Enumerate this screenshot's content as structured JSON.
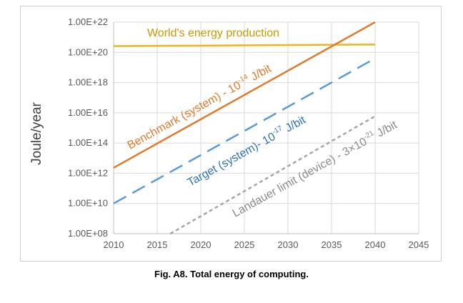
{
  "chart_data": {
    "type": "line",
    "title": "",
    "xlabel": "",
    "ylabel": "Joule/year",
    "yscale": "log",
    "xlim": [
      2010,
      2045
    ],
    "ylim": [
      100000000.0,
      1e+22
    ],
    "x_ticks": [
      "2010",
      "2015",
      "2020",
      "2025",
      "2030",
      "2035",
      "2040",
      "2045"
    ],
    "x_tick_values": [
      2010,
      2015,
      2020,
      2025,
      2030,
      2035,
      2040,
      2045
    ],
    "y_ticks": [
      "1.00E+08",
      "1.00E+10",
      "1.00E+12",
      "1.00E+14",
      "1.00E+16",
      "1.00E+18",
      "1.00E+20",
      "1.00E+22"
    ],
    "y_tick_values": [
      100000000.0,
      10000000000.0,
      1000000000000.0,
      100000000000000.0,
      1e+16,
      1e+18,
      1e+20,
      1e+22
    ],
    "grid": true,
    "series": [
      {
        "name": "World's energy production",
        "label_parts": [
          "World's energy production"
        ],
        "color": "#f2b21c",
        "style": "solid",
        "x": [
          2010,
          2040
        ],
        "y": [
          2.6e+20,
          3.3e+20
        ]
      },
      {
        "name": "Benchmark (system) - 10^-14 J/bit",
        "label_parts": [
          "Benchmark (system) - 10",
          "-14",
          " J/bit"
        ],
        "color": "#e07b2e",
        "style": "solid",
        "x": [
          2010,
          2040
        ],
        "y": [
          2300000000000.0,
          1e+22
        ]
      },
      {
        "name": "Target (system)- 10^-17 J/bit",
        "label_parts": [
          "Target (system)- 10",
          "-17",
          " J/bit"
        ],
        "color": "#5b9bd5",
        "style": "longdash",
        "x": [
          2010,
          2040
        ],
        "y": [
          10000000000.0,
          4e+19
        ]
      },
      {
        "name": "Landauer limit (device) - 3×10^-21 J/bit",
        "label_parts": [
          "Landauer limit (device) - 3×10",
          "-21",
          " J/bit"
        ],
        "color": "#a6a6a6",
        "style": "dotted",
        "x": [
          2016.5,
          2040
        ],
        "y": [
          100000000.0,
          6000000000000000.0
        ]
      }
    ]
  },
  "caption": "Fig. A8. Total energy of computing."
}
